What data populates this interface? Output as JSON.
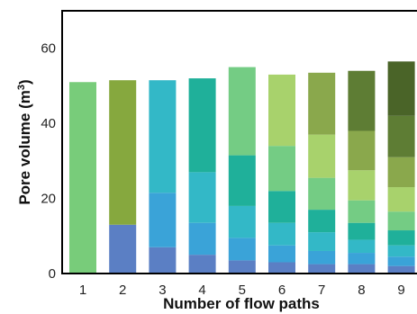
{
  "chart_data": {
    "type": "bar",
    "stacked": true,
    "xlabel": "Number of flow paths",
    "ylabel_main": "Pore volume (m",
    "ylabel_sup": "3",
    "ylabel_close": ")",
    "categories": [
      "1",
      "2",
      "3",
      "4",
      "5",
      "6",
      "7",
      "8",
      "9"
    ],
    "ylim": [
      0,
      70
    ],
    "yticks": [
      "0",
      "20",
      "40",
      "60"
    ],
    "ytick_values": [
      0,
      20,
      40,
      60
    ],
    "grid": false,
    "legend": "none",
    "stacks": [
      [
        51
      ],
      [
        13,
        38.5
      ],
      [
        7,
        14.5,
        30
      ],
      [
        5,
        8.5,
        13.5,
        25
      ],
      [
        3.5,
        6,
        8.5,
        13.5,
        23.5
      ],
      [
        3,
        4.5,
        6,
        8.5,
        12,
        19
      ],
      [
        2.5,
        3.5,
        5,
        6,
        8.5,
        11.5,
        16.5
      ],
      [
        2.5,
        3,
        3.5,
        4.5,
        6,
        8,
        10.5,
        16
      ],
      [
        2,
        2.5,
        3,
        4,
        5,
        6.5,
        8,
        11,
        14.5
      ]
    ],
    "segment_colors": [
      "#5b7fc4",
      "#3aa3d8",
      "#33b8c7",
      "#1fb09a",
      "#74cc84",
      "#a8d26c",
      "#8aa84c",
      "#5e7d34",
      "#4a6428"
    ],
    "top_colors": {
      "1": "#78cc7a",
      "2": "#86a83e"
    }
  }
}
